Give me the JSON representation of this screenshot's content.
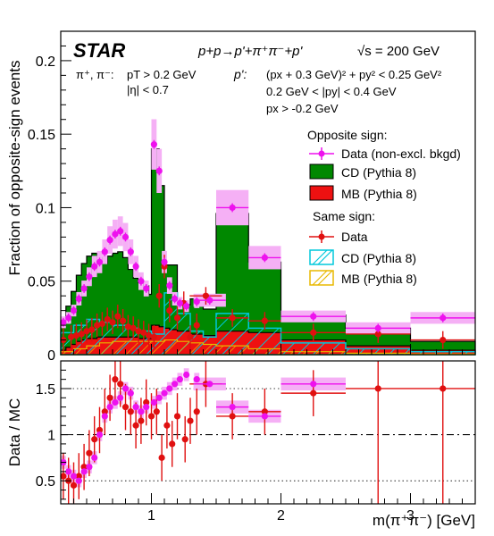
{
  "experiment": "STAR",
  "process": "p+p→p'+π⁺π⁻+p'",
  "energy": "√s = 200 GeV",
  "cuts_pion_label": "π⁺, π⁻:",
  "cuts_pion_1": "pT > 0.2 GeV",
  "cuts_pion_2": "|η| < 0.7",
  "cuts_proton_label": "p':",
  "cuts_proton_1": "(px + 0.3 GeV)² + py² < 0.25 GeV²",
  "cuts_proton_2": "0.2 GeV < |py| < 0.4 GeV",
  "cuts_proton_3": "px > -0.2 GeV",
  "legend": {
    "opposite_title": "Opposite sign:",
    "os_data": "Data (non-excl. bkgd)",
    "os_cd": "CD (Pythia 8)",
    "os_mb": "MB (Pythia 8)",
    "same_title": "Same sign:",
    "ss_data": "Data",
    "ss_cd": "CD (Pythia 8)",
    "ss_mb": "MB (Pythia 8)"
  },
  "colors": {
    "os_data": "#ee11ee",
    "os_band": "#f5b0f5",
    "cd_fill": "#008800",
    "mb_fill": "#ee1111",
    "ss_data": "#e01010",
    "ss_cd_line": "#00c8dc",
    "ss_mb_line": "#e8b800"
  },
  "chart_data": [
    {
      "type": "line",
      "panel": "top",
      "xlim": [
        0.3,
        3.5
      ],
      "ylim": [
        0,
        0.22
      ],
      "ylabel": "Fraction of opposite-sign events",
      "xticks": [
        "1",
        "2",
        "3"
      ],
      "yticks": [
        "0",
        "0.05",
        "0.1",
        "0.15",
        "0.2"
      ],
      "cd_edges": [
        0.3,
        0.34,
        0.38,
        0.42,
        0.46,
        0.5,
        0.54,
        0.58,
        0.62,
        0.66,
        0.7,
        0.74,
        0.78,
        0.82,
        0.86,
        0.9,
        0.94,
        0.98,
        1.0,
        1.06,
        1.1,
        1.14,
        1.2,
        1.3,
        1.4,
        1.5,
        1.75,
        2.0,
        2.5,
        3.0,
        3.5
      ],
      "cd_values": [
        0.02,
        0.028,
        0.036,
        0.045,
        0.052,
        0.056,
        0.058,
        0.054,
        0.05,
        0.055,
        0.057,
        0.058,
        0.054,
        0.046,
        0.04,
        0.038,
        0.036,
        0.03,
        0.12,
        0.096,
        0.043,
        0.044,
        0.018,
        0.024,
        0.018,
        0.08,
        0.048,
        0.017,
        0.012,
        0.006
      ],
      "mb_values": [
        0.003,
        0.005,
        0.007,
        0.009,
        0.01,
        0.011,
        0.011,
        0.012,
        0.012,
        0.012,
        0.012,
        0.012,
        0.012,
        0.012,
        0.012,
        0.011,
        0.011,
        0.011,
        0.02,
        0.019,
        0.018,
        0.017,
        0.016,
        0.014,
        0.013,
        0.016,
        0.015,
        0.01,
        0.006,
        0.003
      ],
      "ss_cd_edges": [
        0.3,
        0.4,
        0.5,
        0.6,
        0.7,
        0.8,
        0.9,
        1.0,
        1.1,
        1.2,
        1.3,
        1.4,
        1.5,
        1.75,
        2.0,
        2.5,
        3.0,
        3.5
      ],
      "ss_cd_values": [
        0.015,
        0.02,
        0.024,
        0.022,
        0.02,
        0.018,
        0.016,
        0.014,
        0.042,
        0.028,
        0.016,
        0.012,
        0.028,
        0.018,
        0.008,
        0.004,
        0.002
      ],
      "ss_mb_values": [
        0.002,
        0.004,
        0.006,
        0.008,
        0.009,
        0.009,
        0.009,
        0.009,
        0.01,
        0.009,
        0.008,
        0.007,
        0.006,
        0.004,
        0.002,
        0.001,
        0.0005
      ],
      "os_data_x": [
        0.32,
        0.36,
        0.4,
        0.44,
        0.48,
        0.52,
        0.56,
        0.6,
        0.64,
        0.68,
        0.72,
        0.76,
        0.8,
        0.84,
        0.88,
        0.92,
        0.96,
        1.02,
        1.06,
        1.1,
        1.14,
        1.18,
        1.22,
        1.27,
        1.35,
        1.45,
        1.625,
        1.875,
        2.25,
        2.75,
        3.25
      ],
      "os_data_y": [
        0.022,
        0.025,
        0.03,
        0.038,
        0.045,
        0.053,
        0.06,
        0.063,
        0.07,
        0.078,
        0.082,
        0.084,
        0.08,
        0.07,
        0.06,
        0.05,
        0.045,
        0.143,
        0.125,
        0.063,
        0.047,
        0.038,
        0.035,
        0.033,
        0.036,
        0.037,
        0.1,
        0.066,
        0.026,
        0.018,
        0.025
      ],
      "ss_data_x": [
        0.32,
        0.38,
        0.42,
        0.46,
        0.5,
        0.54,
        0.58,
        0.62,
        0.66,
        0.7,
        0.74,
        0.78,
        0.82,
        0.86,
        0.9,
        0.94,
        0.98,
        1.02,
        1.06,
        1.1,
        1.14,
        1.2,
        1.25,
        1.3,
        1.35,
        1.42,
        1.625,
        1.875,
        2.25,
        2.75,
        3.25
      ],
      "ss_data_y": [
        0.01,
        0.012,
        0.013,
        0.014,
        0.016,
        0.017,
        0.02,
        0.021,
        0.024,
        0.022,
        0.026,
        0.023,
        0.019,
        0.018,
        0.016,
        0.015,
        0.013,
        0.012,
        0.04,
        0.06,
        0.03,
        0.025,
        0.035,
        0.012,
        0.02,
        0.04,
        0.025,
        0.023,
        0.015,
        0.014,
        0.01
      ]
    },
    {
      "type": "scatter",
      "panel": "bottom",
      "xlim": [
        0.3,
        3.5
      ],
      "ylim": [
        0.25,
        1.8
      ],
      "ylabel": "Data / MC",
      "xlabel": "m(π⁺π⁻) [GeV]",
      "xticks": [
        "1",
        "2",
        "3"
      ],
      "yticks": [
        "0.5",
        "1",
        "1.5"
      ],
      "ref_lines": [
        1.0,
        0.5,
        1.5
      ],
      "ratio_os_x": [
        0.32,
        0.36,
        0.4,
        0.44,
        0.48,
        0.52,
        0.56,
        0.6,
        0.64,
        0.68,
        0.72,
        0.76,
        0.8,
        0.84,
        0.88,
        0.92,
        0.96,
        1.02,
        1.06,
        1.1,
        1.14,
        1.18,
        1.22,
        1.27,
        1.35,
        1.45,
        1.625,
        1.875,
        2.25
      ],
      "ratio_os_y": [
        0.7,
        0.6,
        0.55,
        0.5,
        0.6,
        0.65,
        0.75,
        1.0,
        1.2,
        1.3,
        1.35,
        1.4,
        1.5,
        1.45,
        1.3,
        1.25,
        1.3,
        1.35,
        1.4,
        1.45,
        1.5,
        1.55,
        1.6,
        1.65,
        1.6,
        1.55,
        1.3,
        1.2,
        1.55
      ],
      "ratio_ss_x": [
        0.32,
        0.36,
        0.4,
        0.44,
        0.48,
        0.52,
        0.56,
        0.6,
        0.64,
        0.68,
        0.72,
        0.76,
        0.8,
        0.84,
        0.88,
        0.92,
        0.96,
        1.0,
        1.04,
        1.08,
        1.12,
        1.16,
        1.2,
        1.26,
        1.3,
        1.35,
        1.42,
        1.625,
        1.875,
        2.25,
        2.75,
        3.25
      ],
      "ratio_ss_y": [
        0.55,
        0.5,
        0.45,
        0.55,
        0.65,
        0.8,
        0.95,
        1.05,
        1.25,
        1.4,
        1.6,
        1.55,
        1.3,
        1.25,
        1.1,
        1.15,
        1.35,
        1.2,
        1.25,
        0.75,
        1.1,
        0.9,
        1.2,
        0.95,
        1.15,
        1.25,
        1.55,
        1.2,
        1.25,
        1.45,
        1.5,
        1.5
      ]
    }
  ]
}
